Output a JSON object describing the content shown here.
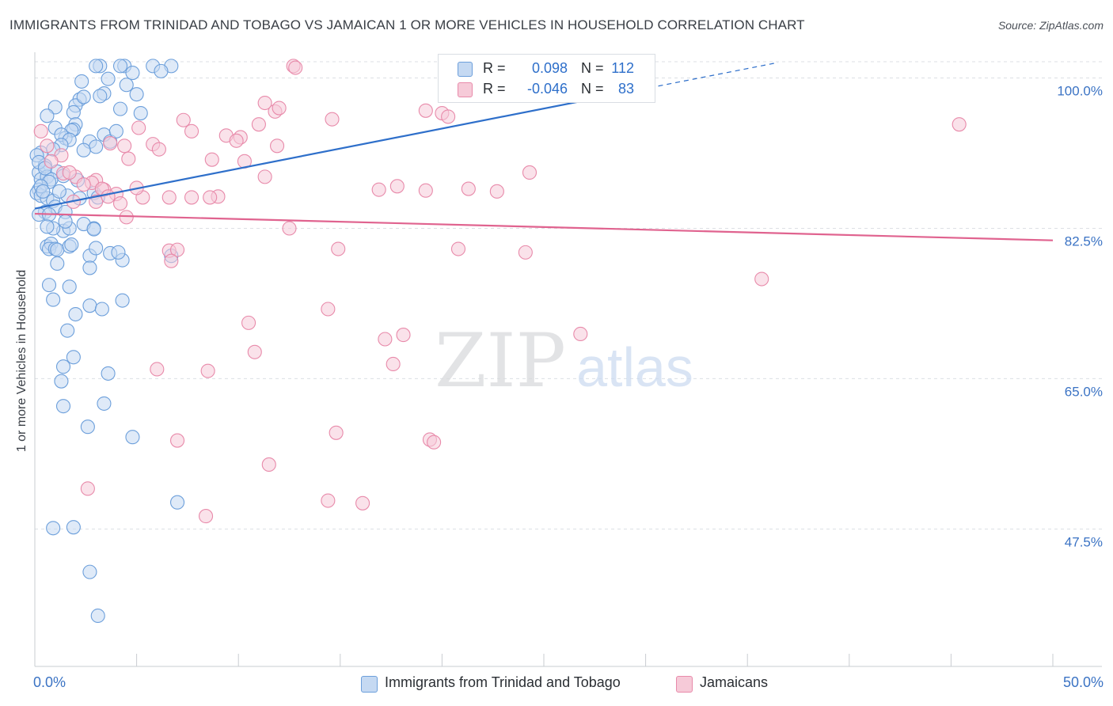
{
  "header": {
    "title": "IMMIGRANTS FROM TRINIDAD AND TOBAGO VS JAMAICAN 1 OR MORE VEHICLES IN HOUSEHOLD CORRELATION CHART",
    "source": "Source: ZipAtlas.com"
  },
  "watermark": {
    "zip": "ZIP",
    "atlas": "atlas"
  },
  "legend": {
    "r_label": "R =",
    "n_label": "N =",
    "rows": [
      {
        "r": "0.098",
        "n": "112"
      },
      {
        "r": "-0.046",
        "n": "83"
      }
    ]
  },
  "x_axis": {
    "min_label": "0.0%",
    "max_label": "50.0%"
  },
  "colors": {
    "blue": "#6c9fdb",
    "blue_fill": "#c5d9f2",
    "blue_line": "#2e6fca",
    "pink": "#e88aaa",
    "pink_fill": "#f6cad8",
    "pink_line": "#e0638f",
    "tick_label": "#3b73c4"
  },
  "chart_data": {
    "type": "scatter",
    "title": "IMMIGRANTS FROM TRINIDAD AND TOBAGO VS JAMAICAN 1 OR MORE VEHICLES IN HOUSEHOLD CORRELATION CHART",
    "xlabel": "",
    "ylabel": "1 or more Vehicles in Household",
    "xlim": [
      0,
      50
    ],
    "ylim": [
      31.5,
      103
    ],
    "y_ticks": [
      100,
      82.5,
      65,
      47.5
    ],
    "y_tick_labels": [
      "100.0%",
      "82.5%",
      "65.0%",
      "47.5%"
    ],
    "x_tick_labels": [
      "0.0%",
      "50.0%"
    ],
    "grid": true,
    "legend_position": "top-center",
    "series": [
      {
        "name": "Immigrants from Trinidad and Tobago",
        "color": "#6c9fdb",
        "r": 0.098,
        "n": 112,
        "trend": {
          "x": [
            0,
            36.5
          ],
          "y": [
            84.8,
            101.8
          ]
        },
        "trend_solid_until_x": 30.2,
        "points": [
          [
            3.2,
            101.4
          ],
          [
            4.4,
            101.4
          ],
          [
            3.0,
            101.4
          ],
          [
            4.2,
            101.4
          ],
          [
            5.8,
            101.4
          ],
          [
            6.7,
            101.4
          ],
          [
            6.2,
            100.8
          ],
          [
            4.8,
            100.6
          ],
          [
            3.6,
            99.9
          ],
          [
            2.3,
            99.6
          ],
          [
            4.5,
            99.2
          ],
          [
            3.4,
            98.2
          ],
          [
            3.2,
            97.9
          ],
          [
            2.2,
            97.5
          ],
          [
            2.0,
            96.8
          ],
          [
            1.0,
            96.6
          ],
          [
            4.2,
            96.4
          ],
          [
            5.2,
            95.9
          ],
          [
            1.9,
            96.0
          ],
          [
            0.6,
            95.6
          ],
          [
            2.0,
            94.6
          ],
          [
            1.0,
            94.2
          ],
          [
            1.9,
            94.0
          ],
          [
            1.8,
            93.9
          ],
          [
            1.5,
            93.0
          ],
          [
            3.4,
            93.4
          ],
          [
            1.3,
            93.4
          ],
          [
            2.7,
            92.6
          ],
          [
            3.7,
            92.6
          ],
          [
            3.0,
            92.0
          ],
          [
            0.3,
            91.3
          ],
          [
            0.5,
            89.8
          ],
          [
            1.1,
            89.1
          ],
          [
            1.4,
            88.6
          ],
          [
            2.1,
            88.1
          ],
          [
            0.2,
            89.0
          ],
          [
            0.5,
            89.8
          ],
          [
            0.1,
            91.0
          ],
          [
            0.2,
            90.2
          ],
          [
            0.3,
            88.2
          ],
          [
            0.6,
            88.5
          ],
          [
            0.8,
            88.2
          ],
          [
            0.7,
            87.9
          ],
          [
            0.2,
            87.0
          ],
          [
            0.1,
            86.6
          ],
          [
            0.3,
            86.3
          ],
          [
            0.6,
            86.0
          ],
          [
            0.9,
            85.7
          ],
          [
            1.0,
            85.0
          ],
          [
            0.5,
            84.4
          ],
          [
            0.2,
            84.1
          ],
          [
            0.3,
            87.4
          ],
          [
            0.4,
            86.8
          ],
          [
            1.6,
            86.3
          ],
          [
            2.9,
            86.6
          ],
          [
            1.4,
            82.2
          ],
          [
            1.7,
            82.5
          ],
          [
            2.9,
            82.5
          ],
          [
            0.9,
            82.5
          ],
          [
            0.6,
            80.4
          ],
          [
            0.8,
            80.7
          ],
          [
            0.7,
            80.1
          ],
          [
            1.0,
            80.1
          ],
          [
            1.1,
            80.0
          ],
          [
            1.7,
            80.4
          ],
          [
            3.7,
            79.6
          ],
          [
            2.7,
            79.3
          ],
          [
            4.3,
            78.8
          ],
          [
            1.1,
            78.4
          ],
          [
            2.7,
            77.9
          ],
          [
            0.7,
            75.9
          ],
          [
            1.7,
            75.7
          ],
          [
            0.9,
            74.2
          ],
          [
            4.3,
            74.1
          ],
          [
            2.7,
            73.5
          ],
          [
            3.3,
            73.1
          ],
          [
            2.0,
            72.5
          ],
          [
            1.6,
            70.6
          ],
          [
            1.9,
            67.5
          ],
          [
            1.4,
            66.4
          ],
          [
            1.3,
            64.7
          ],
          [
            3.6,
            65.6
          ],
          [
            3.4,
            62.1
          ],
          [
            1.4,
            61.8
          ],
          [
            2.6,
            59.4
          ],
          [
            4.8,
            58.2
          ],
          [
            7.0,
            50.6
          ],
          [
            1.9,
            47.7
          ],
          [
            0.9,
            47.6
          ],
          [
            2.7,
            42.5
          ],
          [
            3.1,
            37.4
          ],
          [
            6.7,
            79.3
          ],
          [
            1.5,
            84.4
          ],
          [
            2.4,
            91.6
          ],
          [
            1.7,
            92.8
          ],
          [
            4.0,
            93.8
          ],
          [
            5.0,
            98.1
          ],
          [
            2.4,
            97.8
          ],
          [
            1.3,
            92.2
          ],
          [
            0.9,
            91.7
          ],
          [
            0.5,
            89.5
          ],
          [
            1.2,
            86.8
          ],
          [
            2.2,
            86.0
          ],
          [
            3.1,
            86.1
          ],
          [
            0.7,
            84.1
          ],
          [
            1.5,
            83.3
          ],
          [
            2.4,
            83.0
          ],
          [
            2.9,
            82.4
          ],
          [
            0.6,
            82.7
          ],
          [
            1.8,
            80.6
          ],
          [
            3.0,
            80.2
          ],
          [
            4.1,
            79.7
          ]
        ]
      },
      {
        "name": "Jamaicans",
        "color": "#e88aaa",
        "r": -0.046,
        "n": 83,
        "trend": {
          "x": [
            0,
            50
          ],
          "y": [
            84.2,
            81.1
          ]
        },
        "points": [
          [
            12.7,
            101.4
          ],
          [
            28.3,
            101.4
          ],
          [
            12.8,
            101.2
          ],
          [
            11.3,
            97.1
          ],
          [
            11.8,
            96.1
          ],
          [
            12.0,
            96.5
          ],
          [
            19.2,
            96.2
          ],
          [
            20.0,
            95.9
          ],
          [
            20.3,
            95.5
          ],
          [
            14.6,
            95.2
          ],
          [
            7.3,
            95.1
          ],
          [
            11.0,
            94.6
          ],
          [
            5.1,
            94.2
          ],
          [
            7.7,
            93.8
          ],
          [
            9.4,
            93.3
          ],
          [
            10.1,
            93.1
          ],
          [
            9.9,
            92.7
          ],
          [
            11.9,
            92.1
          ],
          [
            3.7,
            92.4
          ],
          [
            4.4,
            92.1
          ],
          [
            5.8,
            92.3
          ],
          [
            6.1,
            91.7
          ],
          [
            4.6,
            90.6
          ],
          [
            8.7,
            90.5
          ],
          [
            10.3,
            90.3
          ],
          [
            11.3,
            88.5
          ],
          [
            17.8,
            87.4
          ],
          [
            16.9,
            87.0
          ],
          [
            19.2,
            86.9
          ],
          [
            21.3,
            87.1
          ],
          [
            22.7,
            86.8
          ],
          [
            24.3,
            89.0
          ],
          [
            9.0,
            86.2
          ],
          [
            8.6,
            86.1
          ],
          [
            7.7,
            86.1
          ],
          [
            5.3,
            86.1
          ],
          [
            4.0,
            86.5
          ],
          [
            3.4,
            87.0
          ],
          [
            3.0,
            88.1
          ],
          [
            2.0,
            88.5
          ],
          [
            1.4,
            88.9
          ],
          [
            1.9,
            85.6
          ],
          [
            3.0,
            85.6
          ],
          [
            4.5,
            83.8
          ],
          [
            12.5,
            82.5
          ],
          [
            14.9,
            80.1
          ],
          [
            20.8,
            80.1
          ],
          [
            24.1,
            79.7
          ],
          [
            6.6,
            79.9
          ],
          [
            7.0,
            80.0
          ],
          [
            6.7,
            78.7
          ],
          [
            35.7,
            76.6
          ],
          [
            14.4,
            73.1
          ],
          [
            10.5,
            71.5
          ],
          [
            17.2,
            69.6
          ],
          [
            18.1,
            70.1
          ],
          [
            26.8,
            70.2
          ],
          [
            10.8,
            68.1
          ],
          [
            17.6,
            66.7
          ],
          [
            6.0,
            66.1
          ],
          [
            8.5,
            65.9
          ],
          [
            14.8,
            58.7
          ],
          [
            19.4,
            57.9
          ],
          [
            19.6,
            57.6
          ],
          [
            7.0,
            57.8
          ],
          [
            11.5,
            55.0
          ],
          [
            2.6,
            52.2
          ],
          [
            14.4,
            50.8
          ],
          [
            16.1,
            50.5
          ],
          [
            8.4,
            49.0
          ],
          [
            45.4,
            94.6
          ],
          [
            0.3,
            93.8
          ],
          [
            0.6,
            92.1
          ],
          [
            1.3,
            91.0
          ],
          [
            0.8,
            90.3
          ],
          [
            1.7,
            89.0
          ],
          [
            2.8,
            87.8
          ],
          [
            3.3,
            87.1
          ],
          [
            2.4,
            87.6
          ],
          [
            3.6,
            86.2
          ],
          [
            4.2,
            85.4
          ],
          [
            5.0,
            87.2
          ],
          [
            6.6,
            86.1
          ]
        ]
      }
    ]
  }
}
